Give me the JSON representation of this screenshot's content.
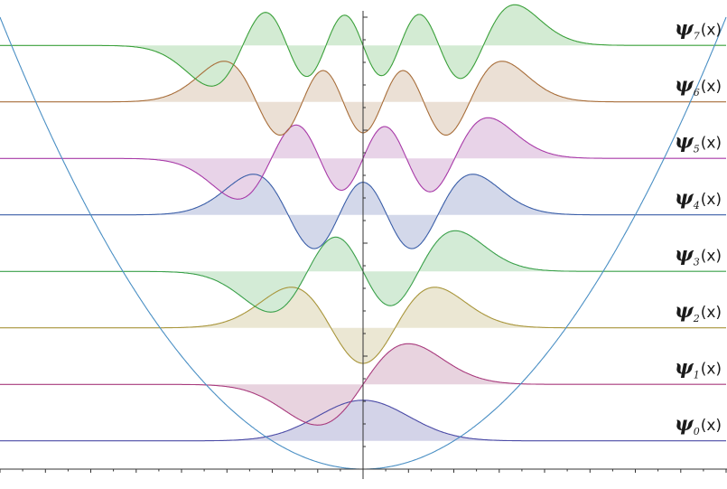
{
  "chart_data": {
    "type": "line",
    "title": "",
    "xlabel": "",
    "ylabel": "",
    "xlim": [
      -8,
      8
    ],
    "ylim": [
      0,
      20
    ],
    "potential": {
      "name": "",
      "formula": "V(x) = x^2 / 3.2",
      "color": "#4a8fc4"
    },
    "series": [
      {
        "name": "ψ0(x)",
        "n": 0,
        "label_base": "ψ",
        "label_sub": "0",
        "label_arg": "(x)",
        "energy": 1.25,
        "color": "#4a4aa6",
        "fill": "#d3d3e8"
      },
      {
        "name": "ψ1(x)",
        "n": 1,
        "label_base": "ψ",
        "label_sub": "1",
        "label_arg": "(x)",
        "energy": 3.75,
        "color": "#a83a7d",
        "fill": "#e8d3df"
      },
      {
        "name": "ψ2(x)",
        "n": 2,
        "label_base": "ψ",
        "label_sub": "2",
        "label_arg": "(x)",
        "energy": 6.25,
        "color": "#a8953a",
        "fill": "#ebe7d3"
      },
      {
        "name": "ψ3(x)",
        "n": 3,
        "label_base": "ψ",
        "label_sub": "3",
        "label_arg": "(x)",
        "energy": 8.75,
        "color": "#3aa04a",
        "fill": "#d3ebd6"
      },
      {
        "name": "ψ4(x)",
        "n": 4,
        "label_base": "ψ",
        "label_sub": "4",
        "label_arg": "(x)",
        "energy": 11.25,
        "color": "#3a5ea8",
        "fill": "#d3d8ea"
      },
      {
        "name": "ψ5(x)",
        "n": 5,
        "label_base": "ψ",
        "label_sub": "5",
        "label_arg": "(x)",
        "energy": 13.75,
        "color": "#a83aa8",
        "fill": "#e8d3e8"
      },
      {
        "name": "ψ6(x)",
        "n": 6,
        "label_base": "ψ",
        "label_sub": "6",
        "label_arg": "(x)",
        "energy": 16.25,
        "color": "#a86e3a",
        "fill": "#ebe0d5"
      },
      {
        "name": "ψ7(x)",
        "n": 7,
        "label_base": "ψ",
        "label_sub": "7",
        "label_arg": "(x)",
        "energy": 18.75,
        "color": "#3aa03a",
        "fill": "#d3ebd3"
      }
    ],
    "grid": false,
    "legend": "right, one label per curve"
  }
}
